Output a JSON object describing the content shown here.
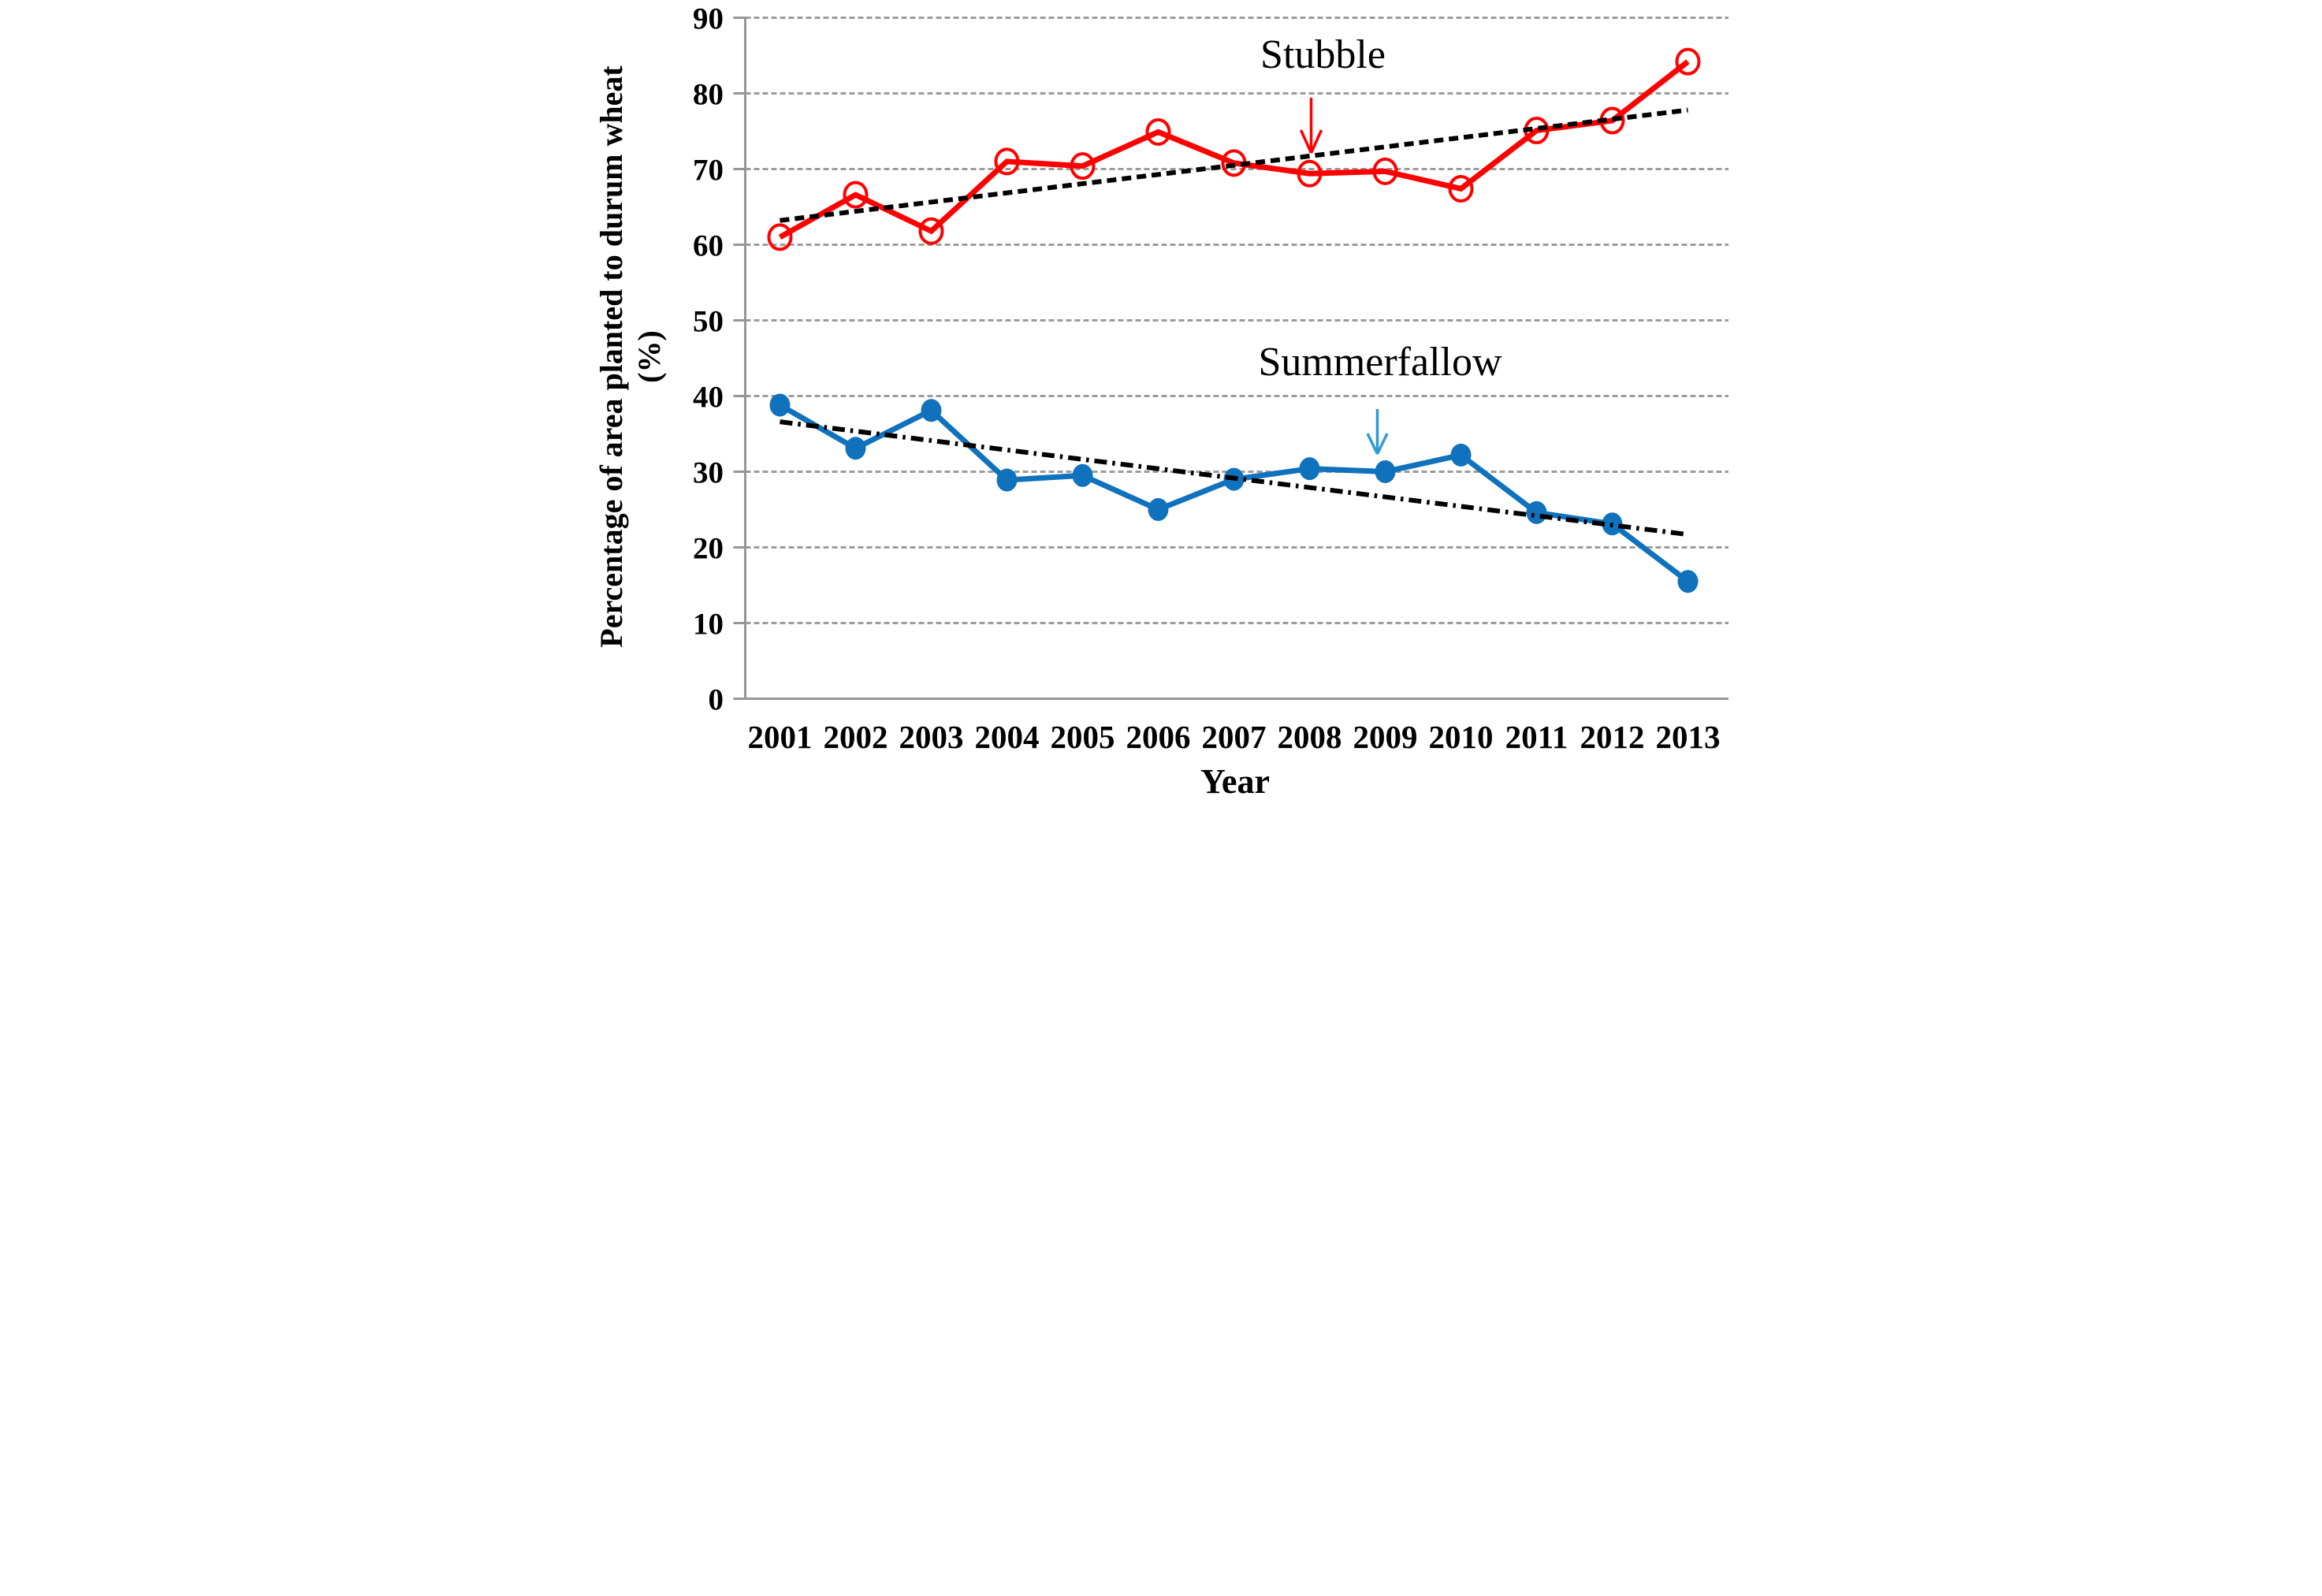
{
  "chart_data": {
    "type": "line",
    "x": [
      2001,
      2002,
      2003,
      2004,
      2005,
      2006,
      2007,
      2008,
      2009,
      2010,
      2011,
      2012,
      2013
    ],
    "xlabel": "Year",
    "ylabel_line1": "Percentage of area planted to durum wheat",
    "ylabel_line2": "(%)",
    "ylim": [
      0,
      90
    ],
    "ytick_step": 10,
    "yticks": [
      0,
      10,
      20,
      30,
      40,
      50,
      60,
      70,
      80,
      90
    ],
    "grid": "horizontal dashed gray lines at every 10 units",
    "legend_position": "inline annotations with arrows",
    "series": [
      {
        "name": "Stubble",
        "color": "#FF0000",
        "marker": "open-circle",
        "values": [
          61.0,
          66.6,
          61.8,
          71.0,
          70.4,
          74.9,
          70.8,
          69.4,
          69.7,
          67.4,
          75.1,
          76.4,
          84.2
        ]
      },
      {
        "name": "Summerfallow",
        "color": "#1072BD",
        "marker": "filled-circle",
        "values": [
          38.8,
          33.1,
          38.1,
          28.9,
          29.5,
          25.0,
          29.0,
          30.4,
          30.0,
          32.2,
          24.6,
          23.1,
          15.5
        ]
      }
    ],
    "trendlines": [
      {
        "series": "Stubble",
        "style": "dashed",
        "color": "#000000",
        "start_value": 63.2,
        "end_value": 77.8
      },
      {
        "series": "Summerfallow",
        "style": "dash-dot",
        "color": "#000000",
        "start_value": 36.6,
        "end_value": 21.7
      }
    ],
    "annotations": [
      {
        "text": "Stubble",
        "color": "#FF0000",
        "arrow_color": "#FF0000",
        "arrow_icon": "down-arrow-icon",
        "target_year": 2008,
        "target_series": "Stubble"
      },
      {
        "text": "Summerfallow",
        "color": "#1072BD",
        "arrow_color": "#2E9BD8",
        "arrow_icon": "down-arrow-icon",
        "target_year": 2009,
        "target_series": "Summerfallow"
      }
    ],
    "axis_color": "#969696",
    "grid_color": "#9C9C9C",
    "tick_label_color": "#000000"
  }
}
